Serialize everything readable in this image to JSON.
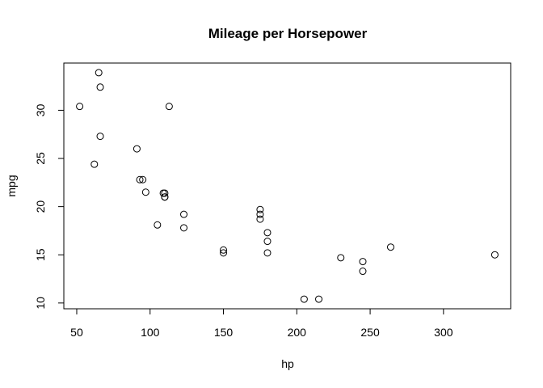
{
  "chart_data": {
    "type": "scatter",
    "title": "Mileage per Horsepower",
    "xlabel": "hp",
    "ylabel": "mpg",
    "xlim": [
      41.2,
      345.8
    ],
    "ylim": [
      9.4,
      34.9
    ],
    "xticks": [
      50,
      100,
      150,
      200,
      250,
      300
    ],
    "yticks": [
      10,
      15,
      20,
      25,
      30
    ],
    "grid": false,
    "marker": "open-circle",
    "points": [
      {
        "x": 110,
        "y": 21.0
      },
      {
        "x": 110,
        "y": 21.0
      },
      {
        "x": 93,
        "y": 22.8
      },
      {
        "x": 110,
        "y": 21.4
      },
      {
        "x": 175,
        "y": 18.7
      },
      {
        "x": 105,
        "y": 18.1
      },
      {
        "x": 245,
        "y": 14.3
      },
      {
        "x": 62,
        "y": 24.4
      },
      {
        "x": 95,
        "y": 22.8
      },
      {
        "x": 123,
        "y": 19.2
      },
      {
        "x": 123,
        "y": 17.8
      },
      {
        "x": 180,
        "y": 16.4
      },
      {
        "x": 180,
        "y": 17.3
      },
      {
        "x": 180,
        "y": 15.2
      },
      {
        "x": 205,
        "y": 10.4
      },
      {
        "x": 215,
        "y": 10.4
      },
      {
        "x": 230,
        "y": 14.7
      },
      {
        "x": 66,
        "y": 32.4
      },
      {
        "x": 52,
        "y": 30.4
      },
      {
        "x": 65,
        "y": 33.9
      },
      {
        "x": 97,
        "y": 21.5
      },
      {
        "x": 150,
        "y": 15.5
      },
      {
        "x": 150,
        "y": 15.2
      },
      {
        "x": 245,
        "y": 13.3
      },
      {
        "x": 175,
        "y": 19.2
      },
      {
        "x": 66,
        "y": 27.3
      },
      {
        "x": 91,
        "y": 26.0
      },
      {
        "x": 113,
        "y": 30.4
      },
      {
        "x": 264,
        "y": 15.8
      },
      {
        "x": 175,
        "y": 19.7
      },
      {
        "x": 335,
        "y": 15.0
      },
      {
        "x": 109,
        "y": 21.4
      }
    ]
  }
}
